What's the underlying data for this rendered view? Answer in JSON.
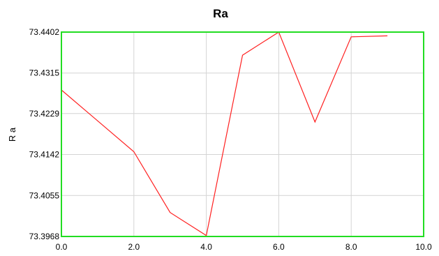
{
  "chart_data": {
    "type": "line",
    "title": "Ra",
    "xlabel": "",
    "ylabel": "R a",
    "xlim": [
      0.0,
      10.0
    ],
    "ylim": [
      73.3968,
      73.4402
    ],
    "x_ticks": [
      "0.0",
      "2.0",
      "4.0",
      "6.0",
      "8.0",
      "10.0"
    ],
    "x_tick_values": [
      0,
      2,
      4,
      6,
      8,
      10
    ],
    "y_ticks": [
      "73.3968",
      "73.4055",
      "73.4142",
      "73.4229",
      "73.4315",
      "73.4402"
    ],
    "y_tick_values": [
      73.3968,
      73.4055,
      73.4142,
      73.4229,
      73.4315,
      73.4402
    ],
    "grid": true,
    "series": [
      {
        "color": "#ff2020",
        "x": [
          0,
          2,
          3,
          4,
          5,
          6,
          7,
          8,
          9
        ],
        "y": [
          73.4279,
          73.4148,
          73.4019,
          73.397,
          73.4353,
          73.4402,
          73.4211,
          73.4392,
          73.4394
        ]
      }
    ],
    "colors": {
      "plot_border": "#22dd22",
      "grid": "#d4d4d4",
      "line": "#ff2020"
    }
  }
}
